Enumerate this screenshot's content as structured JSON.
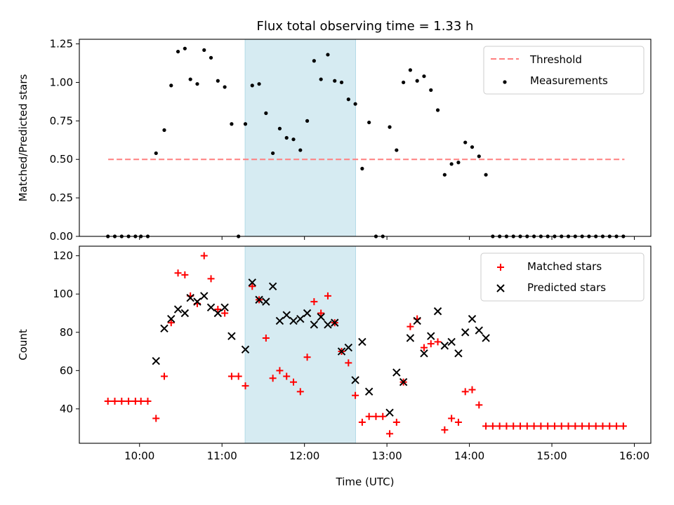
{
  "chart_data": [
    {
      "type": "scatter",
      "title": "Flux total observing time = 1.33 h",
      "xlabel": "",
      "ylabel": "Matched/Predicted stars",
      "ylim": [
        0,
        1.28
      ],
      "yticks": [
        "0.00",
        "0.25",
        "0.50",
        "0.75",
        "1.00",
        "1.25"
      ],
      "ytick_values": [
        0,
        0.25,
        0.5,
        0.75,
        1.0,
        1.25
      ],
      "xlim_hours": [
        9.27,
        16.2
      ],
      "xtick_values_hours": [
        10,
        11,
        12,
        13,
        14,
        15,
        16
      ],
      "grid": false,
      "legend_position": "top-right",
      "shaded_region_hours": [
        11.28,
        12.62
      ],
      "shaded_color": "#add8e6",
      "threshold": {
        "name": "Threshold",
        "value": 0.5,
        "x_range_hours": [
          9.62,
          15.88
        ],
        "color": "#ff7f7f"
      },
      "series": [
        {
          "name": "Measurements",
          "color": "#000000",
          "marker": "dot",
          "points": [
            [
              "09:37",
              0.0
            ],
            [
              "09:42",
              0.0
            ],
            [
              "09:47",
              0.0
            ],
            [
              "09:52",
              0.0
            ],
            [
              "09:57",
              0.0
            ],
            [
              "10:01",
              0.0
            ],
            [
              "10:06",
              0.0
            ],
            [
              "10:12",
              0.54
            ],
            [
              "10:18",
              0.69
            ],
            [
              "10:23",
              0.98
            ],
            [
              "10:28",
              1.2
            ],
            [
              "10:33",
              1.22
            ],
            [
              "10:37",
              1.02
            ],
            [
              "10:42",
              0.99
            ],
            [
              "10:47",
              1.21
            ],
            [
              "10:52",
              1.16
            ],
            [
              "10:57",
              1.01
            ],
            [
              "11:02",
              0.97
            ],
            [
              "11:07",
              0.73
            ],
            [
              "11:12",
              0.0
            ],
            [
              "11:17",
              0.73
            ],
            [
              "11:22",
              0.98
            ],
            [
              "11:27",
              0.99
            ],
            [
              "11:32",
              0.8
            ],
            [
              "11:37",
              0.54
            ],
            [
              "11:42",
              0.7
            ],
            [
              "11:47",
              0.64
            ],
            [
              "11:52",
              0.63
            ],
            [
              "11:57",
              0.56
            ],
            [
              "12:02",
              0.75
            ],
            [
              "12:07",
              1.14
            ],
            [
              "12:12",
              1.02
            ],
            [
              "12:17",
              1.18
            ],
            [
              "12:22",
              1.01
            ],
            [
              "12:27",
              1.0
            ],
            [
              "12:32",
              0.89
            ],
            [
              "12:37",
              0.86
            ],
            [
              "12:42",
              0.44
            ],
            [
              "12:47",
              0.74
            ],
            [
              "12:52",
              0.0
            ],
            [
              "12:57",
              0.0
            ],
            [
              "13:02",
              0.71
            ],
            [
              "13:07",
              0.56
            ],
            [
              "13:12",
              1.0
            ],
            [
              "13:17",
              1.08
            ],
            [
              "13:22",
              1.01
            ],
            [
              "13:27",
              1.04
            ],
            [
              "13:32",
              0.95
            ],
            [
              "13:37",
              0.82
            ],
            [
              "13:42",
              0.4
            ],
            [
              "13:47",
              0.47
            ],
            [
              "13:52",
              0.48
            ],
            [
              "13:57",
              0.61
            ],
            [
              "14:02",
              0.58
            ],
            [
              "14:07",
              0.52
            ],
            [
              "14:12",
              0.4
            ],
            [
              "14:17",
              0.0
            ],
            [
              "14:22",
              0.0
            ],
            [
              "14:27",
              0.0
            ],
            [
              "14:32",
              0.0
            ],
            [
              "14:37",
              0.0
            ],
            [
              "14:42",
              0.0
            ],
            [
              "14:47",
              0.0
            ],
            [
              "14:52",
              0.0
            ],
            [
              "14:57",
              0.0
            ],
            [
              "15:02",
              0.0
            ],
            [
              "15:07",
              0.0
            ],
            [
              "15:12",
              0.0
            ],
            [
              "15:17",
              0.0
            ],
            [
              "15:22",
              0.0
            ],
            [
              "15:27",
              0.0
            ],
            [
              "15:32",
              0.0
            ],
            [
              "15:37",
              0.0
            ],
            [
              "15:42",
              0.0
            ],
            [
              "15:47",
              0.0
            ],
            [
              "15:52",
              0.0
            ]
          ]
        }
      ]
    },
    {
      "type": "scatter",
      "title": "",
      "xlabel": "Time (UTC)",
      "ylabel": "Count",
      "ylim": [
        22,
        125
      ],
      "yticks": [
        "40",
        "60",
        "80",
        "100",
        "120"
      ],
      "ytick_values": [
        40,
        60,
        80,
        100,
        120
      ],
      "xlim_hours": [
        9.27,
        16.2
      ],
      "xticks": [
        "10:00",
        "11:00",
        "12:00",
        "13:00",
        "14:00",
        "15:00",
        "16:00"
      ],
      "xtick_values_hours": [
        10,
        11,
        12,
        13,
        14,
        15,
        16
      ],
      "grid": false,
      "legend_position": "top-right",
      "shaded_region_hours": [
        11.28,
        12.62
      ],
      "shaded_color": "#add8e6",
      "series": [
        {
          "name": "Matched stars",
          "color": "#ff0000",
          "marker": "plus",
          "points": [
            [
              "09:37",
              44
            ],
            [
              "09:42",
              44
            ],
            [
              "09:47",
              44
            ],
            [
              "09:52",
              44
            ],
            [
              "09:57",
              44
            ],
            [
              "10:01",
              44
            ],
            [
              "10:06",
              44
            ],
            [
              "10:12",
              35
            ],
            [
              "10:18",
              57
            ],
            [
              "10:23",
              85
            ],
            [
              "10:28",
              111
            ],
            [
              "10:33",
              110
            ],
            [
              "10:37",
              99
            ],
            [
              "10:42",
              95
            ],
            [
              "10:47",
              120
            ],
            [
              "10:52",
              108
            ],
            [
              "10:57",
              92
            ],
            [
              "11:02",
              90
            ],
            [
              "11:07",
              57
            ],
            [
              "11:12",
              57
            ],
            [
              "11:17",
              52
            ],
            [
              "11:22",
              104
            ],
            [
              "11:27",
              97
            ],
            [
              "11:32",
              77
            ],
            [
              "11:37",
              56
            ],
            [
              "11:42",
              60
            ],
            [
              "11:47",
              57
            ],
            [
              "11:52",
              54
            ],
            [
              "11:57",
              49
            ],
            [
              "12:02",
              67
            ],
            [
              "12:07",
              96
            ],
            [
              "12:12",
              90
            ],
            [
              "12:17",
              99
            ],
            [
              "12:22",
              85
            ],
            [
              "12:27",
              70
            ],
            [
              "12:32",
              64
            ],
            [
              "12:37",
              47
            ],
            [
              "12:42",
              33
            ],
            [
              "12:47",
              36
            ],
            [
              "12:52",
              36
            ],
            [
              "12:57",
              36
            ],
            [
              "13:02",
              27
            ],
            [
              "13:07",
              33
            ],
            [
              "13:12",
              54
            ],
            [
              "13:17",
              83
            ],
            [
              "13:22",
              87
            ],
            [
              "13:27",
              72
            ],
            [
              "13:32",
              74
            ],
            [
              "13:37",
              75
            ],
            [
              "13:42",
              29
            ],
            [
              "13:47",
              35
            ],
            [
              "13:52",
              33
            ],
            [
              "13:57",
              49
            ],
            [
              "14:02",
              50
            ],
            [
              "14:07",
              42
            ],
            [
              "14:12",
              31
            ],
            [
              "14:17",
              31
            ],
            [
              "14:22",
              31
            ],
            [
              "14:27",
              31
            ],
            [
              "14:32",
              31
            ],
            [
              "14:37",
              31
            ],
            [
              "14:42",
              31
            ],
            [
              "14:47",
              31
            ],
            [
              "14:52",
              31
            ],
            [
              "14:57",
              31
            ],
            [
              "15:02",
              31
            ],
            [
              "15:07",
              31
            ],
            [
              "15:12",
              31
            ],
            [
              "15:17",
              31
            ],
            [
              "15:22",
              31
            ],
            [
              "15:27",
              31
            ],
            [
              "15:32",
              31
            ],
            [
              "15:37",
              31
            ],
            [
              "15:42",
              31
            ],
            [
              "15:47",
              31
            ],
            [
              "15:52",
              31
            ]
          ]
        },
        {
          "name": "Predicted stars",
          "color": "#000000",
          "marker": "x",
          "points": [
            [
              "10:12",
              65
            ],
            [
              "10:18",
              82
            ],
            [
              "10:23",
              87
            ],
            [
              "10:28",
              92
            ],
            [
              "10:33",
              90
            ],
            [
              "10:37",
              98
            ],
            [
              "10:42",
              96
            ],
            [
              "10:47",
              99
            ],
            [
              "10:52",
              93
            ],
            [
              "10:57",
              90
            ],
            [
              "11:02",
              93
            ],
            [
              "11:07",
              78
            ],
            [
              "11:17",
              71
            ],
            [
              "11:22",
              106
            ],
            [
              "11:27",
              97
            ],
            [
              "11:32",
              96
            ],
            [
              "11:37",
              104
            ],
            [
              "11:42",
              86
            ],
            [
              "11:47",
              89
            ],
            [
              "11:52",
              86
            ],
            [
              "11:57",
              87
            ],
            [
              "12:02",
              90
            ],
            [
              "12:07",
              84
            ],
            [
              "12:12",
              88
            ],
            [
              "12:17",
              84
            ],
            [
              "12:22",
              85
            ],
            [
              "12:27",
              70
            ],
            [
              "12:32",
              72
            ],
            [
              "12:37",
              55
            ],
            [
              "12:42",
              75
            ],
            [
              "12:47",
              49
            ],
            [
              "13:02",
              38
            ],
            [
              "13:07",
              59
            ],
            [
              "13:12",
              54
            ],
            [
              "13:17",
              77
            ],
            [
              "13:22",
              86
            ],
            [
              "13:27",
              69
            ],
            [
              "13:32",
              78
            ],
            [
              "13:37",
              91
            ],
            [
              "13:42",
              73
            ],
            [
              "13:47",
              75
            ],
            [
              "13:52",
              69
            ],
            [
              "13:57",
              80
            ],
            [
              "14:02",
              87
            ],
            [
              "14:07",
              81
            ],
            [
              "14:12",
              77
            ]
          ]
        }
      ]
    }
  ]
}
